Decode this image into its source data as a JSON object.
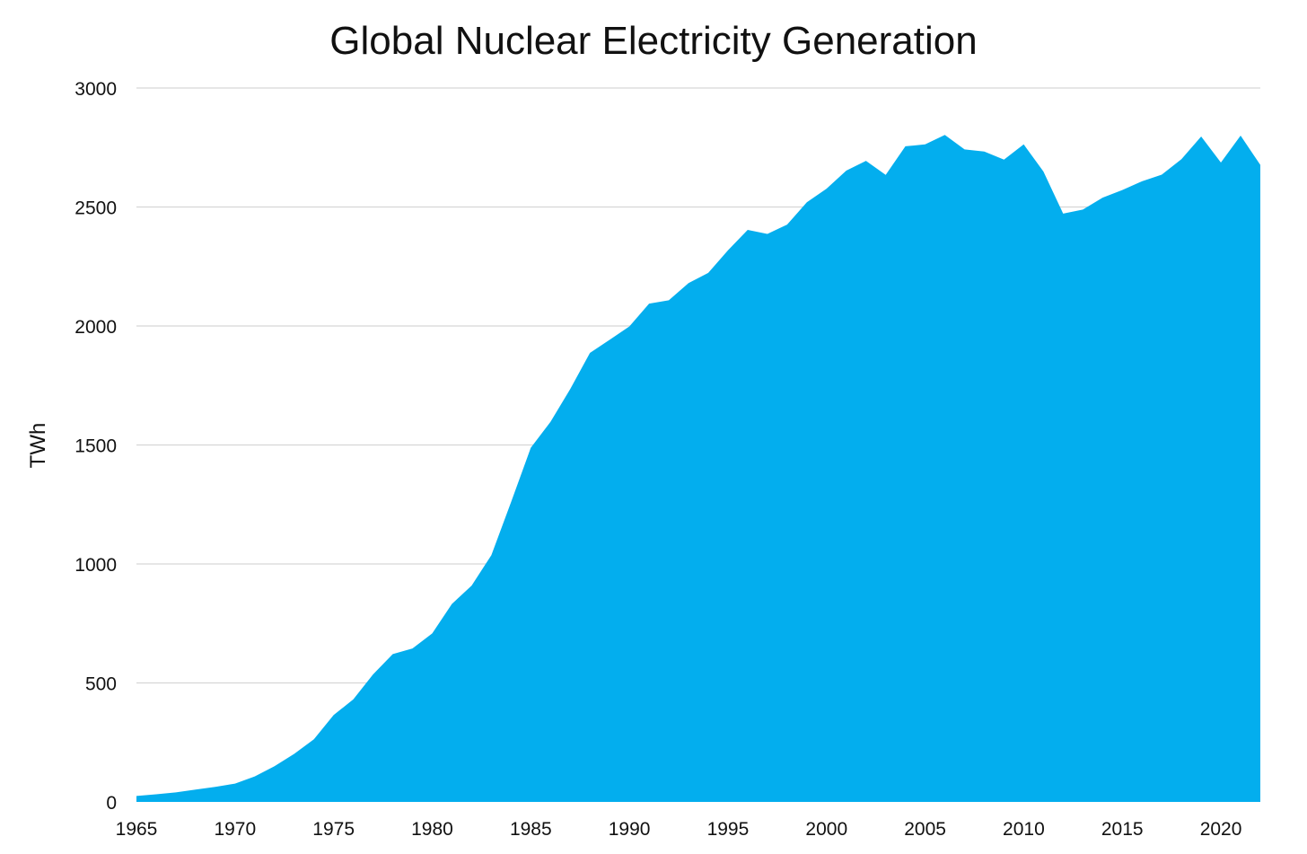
{
  "chart_data": {
    "type": "area",
    "title": "Global Nuclear Electricity Generation",
    "xlabel": "",
    "ylabel": "TWh",
    "xlim": [
      1965,
      2022
    ],
    "ylim": [
      0,
      3000
    ],
    "x_ticks": [
      1965,
      1970,
      1975,
      1980,
      1985,
      1990,
      1995,
      2000,
      2005,
      2010,
      2015,
      2020
    ],
    "y_ticks": [
      0,
      500,
      1000,
      1500,
      2000,
      2500,
      3000
    ],
    "grid": "horizontal",
    "color": "#03AEEE",
    "x": [
      1965,
      1966,
      1967,
      1968,
      1969,
      1970,
      1971,
      1972,
      1973,
      1974,
      1975,
      1976,
      1977,
      1978,
      1979,
      1980,
      1981,
      1982,
      1983,
      1984,
      1985,
      1986,
      1987,
      1988,
      1989,
      1990,
      1991,
      1992,
      1993,
      1994,
      1995,
      1996,
      1997,
      1998,
      1999,
      2000,
      2001,
      2002,
      2003,
      2004,
      2005,
      2006,
      2007,
      2008,
      2009,
      2010,
      2011,
      2012,
      2013,
      2014,
      2015,
      2016,
      2017,
      2018,
      2019,
      2020,
      2021,
      2022
    ],
    "values": [
      25,
      32,
      40,
      52,
      63,
      77,
      107,
      150,
      202,
      263,
      365,
      431,
      536,
      621,
      645,
      708,
      832,
      909,
      1037,
      1260,
      1488,
      1597,
      1735,
      1887,
      1942,
      1998,
      2094,
      2108,
      2180,
      2223,
      2318,
      2404,
      2387,
      2426,
      2520,
      2577,
      2653,
      2694,
      2635,
      2755,
      2763,
      2803,
      2742,
      2733,
      2699,
      2763,
      2649,
      2472,
      2489,
      2539,
      2571,
      2608,
      2636,
      2701,
      2796,
      2687,
      2800,
      2677
    ]
  }
}
